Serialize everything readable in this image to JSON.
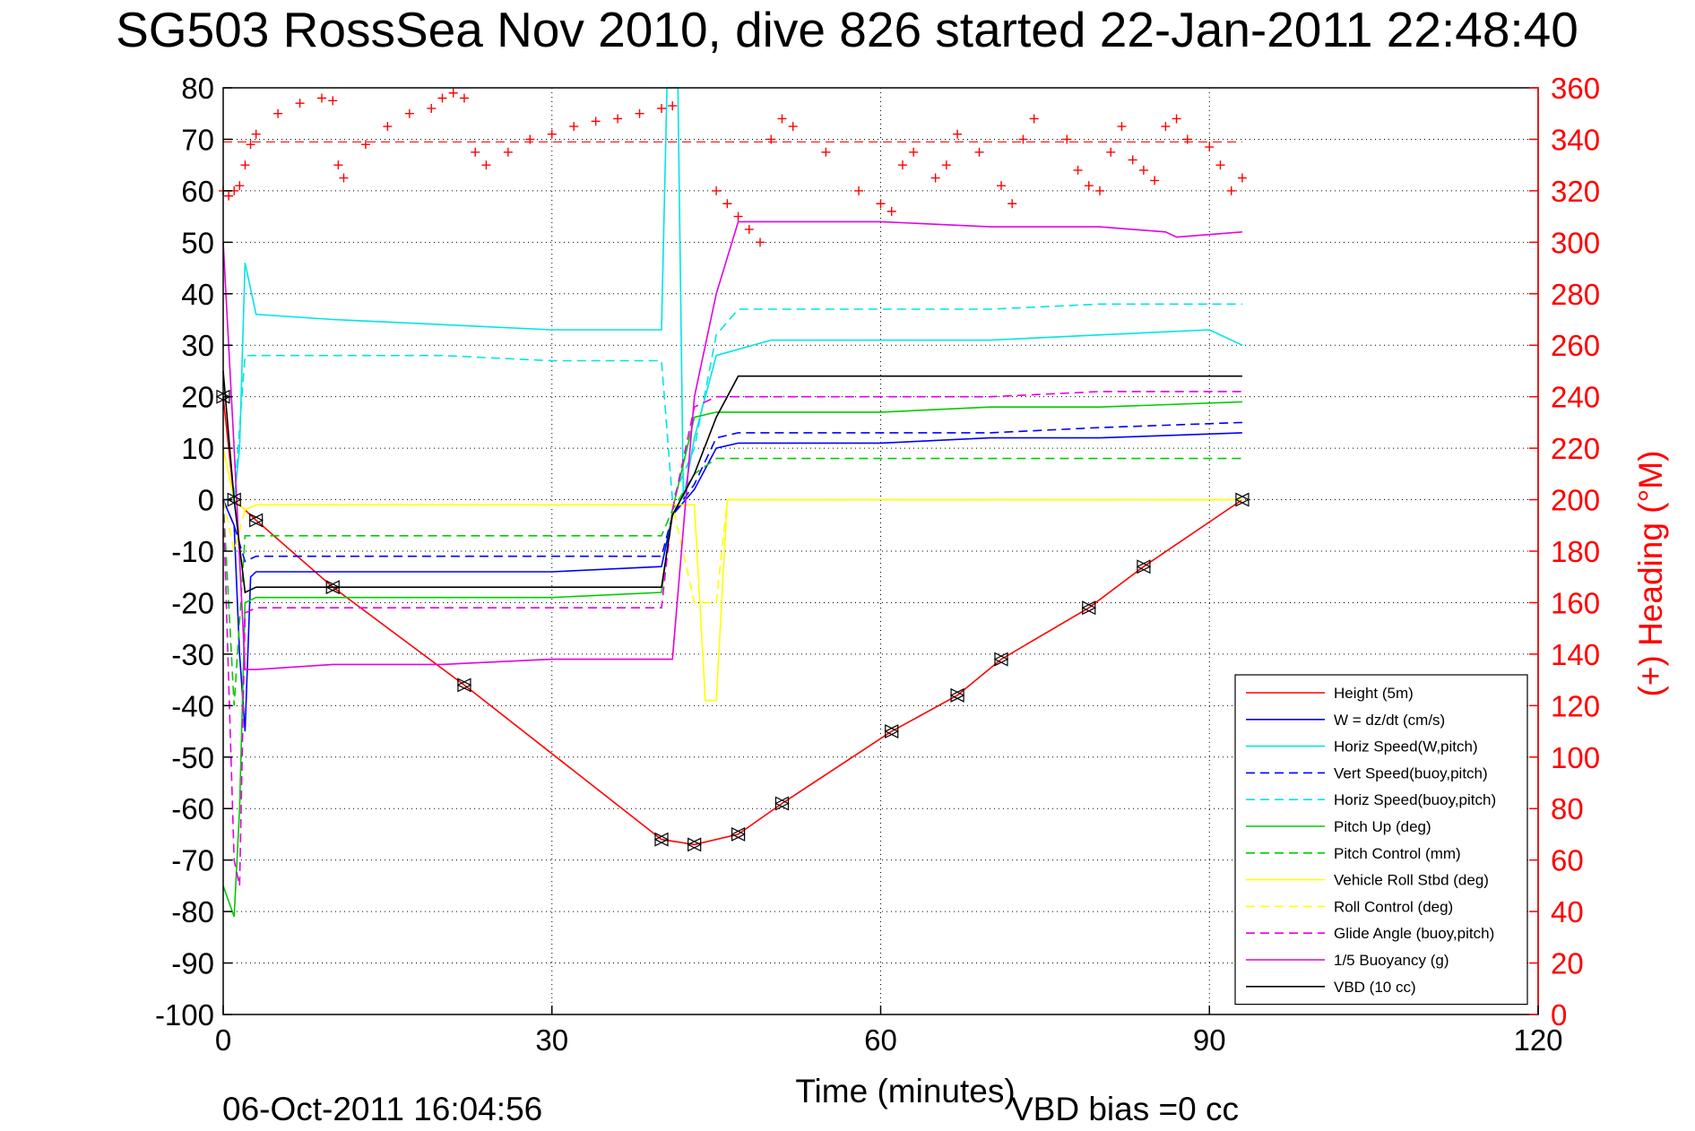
{
  "chart_data": {
    "type": "line",
    "title": "SG503 RossSea Nov 2010, dive 826 started 22-Jan-2011 22:48:40",
    "xlabel": "Time (minutes)",
    "ylabel": "",
    "y2label": "(+) Heading (°M)",
    "xlim": [
      0,
      120
    ],
    "ylim": [
      -100,
      80
    ],
    "y2lim": [
      0,
      360
    ],
    "xticks": [
      0,
      30,
      60,
      90,
      120
    ],
    "yticks": [
      80,
      70,
      60,
      50,
      40,
      30,
      20,
      10,
      0,
      -10,
      -20,
      -30,
      -40,
      -50,
      -60,
      -70,
      -80,
      -90,
      -100
    ],
    "y2ticks": [
      360,
      340,
      320,
      300,
      280,
      260,
      240,
      220,
      200,
      180,
      160,
      140,
      120,
      100,
      80,
      60,
      40,
      20,
      0
    ],
    "grid": true,
    "legend_position": "bottom-right",
    "footer_left": "06-Oct-2011 16:04:56",
    "footer_right": "VBD bias =0 cc",
    "reference_line": {
      "axis": "y2",
      "value": 339,
      "color": "#ff0000",
      "style": "dashed"
    },
    "series": [
      {
        "name": "Height (5m)",
        "color": "#ff0000",
        "dash": "solid",
        "axis": "y",
        "x": [
          0,
          1,
          3,
          10,
          22,
          40,
          43,
          47,
          51,
          61,
          67,
          71,
          79,
          84,
          93
        ],
        "y": [
          20,
          0,
          -4,
          -17,
          -36,
          -66,
          -67,
          -65,
          -59,
          -45,
          -38,
          -31,
          -21,
          -13,
          0
        ]
      },
      {
        "name": "W = dz/dt (cm/s)",
        "color": "#0000ff",
        "dash": "solid",
        "axis": "y",
        "x": [
          0,
          1,
          1.5,
          2,
          2.5,
          3,
          10,
          20,
          30,
          40,
          41,
          43,
          45,
          47,
          50,
          60,
          70,
          80,
          93
        ],
        "y": [
          0,
          -5,
          -30,
          -45,
          -15,
          -14,
          -14,
          -14,
          -14,
          -13,
          -3,
          2,
          10,
          11,
          11,
          11,
          12,
          12,
          13
        ]
      },
      {
        "name": "Horiz Speed(W,pitch)",
        "color": "#00e5e5",
        "dash": "solid",
        "axis": "y",
        "x": [
          0,
          1,
          1.5,
          2,
          3,
          10,
          20,
          30,
          40,
          40.5,
          41,
          41.5,
          42,
          43,
          45,
          50,
          60,
          70,
          80,
          90,
          93
        ],
        "y": [
          0,
          0,
          10,
          46,
          36,
          35,
          34,
          33,
          33,
          80,
          80,
          80,
          0,
          12,
          28,
          31,
          31,
          31,
          32,
          33,
          30
        ]
      },
      {
        "name": "Vert Speed(buoy,pitch)",
        "color": "#0000ff",
        "dash": "dashed",
        "axis": "y",
        "x": [
          0,
          1,
          2,
          3,
          10,
          20,
          30,
          40,
          41,
          43,
          45,
          47,
          60,
          70,
          80,
          93
        ],
        "y": [
          0,
          -5,
          -12,
          -11,
          -11,
          -11,
          -11,
          -11,
          -3,
          3,
          12,
          13,
          13,
          13,
          14,
          15
        ]
      },
      {
        "name": "Horiz Speed(buoy,pitch)",
        "color": "#00e5e5",
        "dash": "dashed",
        "axis": "y",
        "x": [
          0,
          1,
          2,
          3,
          10,
          20,
          30,
          40,
          41,
          43,
          45,
          47,
          60,
          70,
          80,
          93
        ],
        "y": [
          0,
          0,
          28,
          28,
          28,
          28,
          27,
          27,
          0,
          10,
          32,
          37,
          37,
          37,
          38,
          38
        ]
      },
      {
        "name": "Pitch Up (deg)",
        "color": "#00cc00",
        "dash": "solid",
        "axis": "y",
        "x": [
          0,
          1,
          1.5,
          2,
          3,
          10,
          20,
          30,
          40,
          41,
          43,
          45,
          50,
          60,
          70,
          80,
          93
        ],
        "y": [
          -75,
          -81,
          -60,
          -20,
          -19,
          -19,
          -19,
          -19,
          -18,
          -2,
          16,
          17,
          17,
          17,
          18,
          18,
          19
        ]
      },
      {
        "name": "Pitch Control (mm)",
        "color": "#00cc00",
        "dash": "dashed",
        "axis": "y",
        "x": [
          0,
          1,
          2,
          3,
          10,
          20,
          30,
          40,
          41,
          43,
          45,
          47,
          60,
          70,
          80,
          93
        ],
        "y": [
          0,
          -40,
          -7,
          -7,
          -7,
          -7,
          -7,
          -7,
          -2,
          5,
          8,
          8,
          8,
          8,
          8,
          8
        ]
      },
      {
        "name": "Vehicle Roll Stbd (deg)",
        "color": "#ffff00",
        "dash": "solid",
        "axis": "y",
        "x": [
          0,
          1,
          2,
          3,
          10,
          22,
          30,
          40,
          41,
          43,
          44,
          45,
          46,
          50,
          60,
          70,
          80,
          93
        ],
        "y": [
          10,
          0,
          -2,
          -1,
          -1,
          -1,
          -1,
          -1,
          -1,
          -1,
          -39,
          -39,
          0,
          0,
          0,
          0,
          0,
          0
        ]
      },
      {
        "name": "Roll Control (deg)",
        "color": "#ffff00",
        "dash": "dashed",
        "axis": "y",
        "x": [
          0,
          1,
          2,
          3,
          10,
          22,
          30,
          40,
          41,
          43,
          44,
          45,
          46,
          50,
          60,
          70,
          80,
          93
        ],
        "y": [
          0,
          -10,
          -2,
          -1,
          -1,
          -1,
          -1,
          -1,
          -1,
          -20,
          -20,
          -20,
          0,
          0,
          0,
          0,
          0,
          0
        ]
      },
      {
        "name": "Glide Angle (buoy,pitch)",
        "color": "#e500e5",
        "dash": "dashed",
        "axis": "y",
        "x": [
          0,
          1,
          1.5,
          2,
          3,
          10,
          20,
          30,
          40,
          41,
          43,
          45,
          50,
          60,
          70,
          80,
          93
        ],
        "y": [
          0,
          -70,
          -75,
          -22,
          -21,
          -21,
          -21,
          -21,
          -21,
          -2,
          18,
          20,
          20,
          20,
          20,
          21,
          21
        ]
      },
      {
        "name": "1/5 Buoyancy (g)",
        "color": "#e500e5",
        "dash": "solid",
        "axis": "y",
        "x": [
          0,
          1,
          2,
          3,
          10,
          20,
          30,
          40,
          41,
          43,
          45,
          47,
          60,
          70,
          80,
          86,
          87,
          93
        ],
        "y": [
          50,
          10,
          -33,
          -33,
          -32,
          -32,
          -31,
          -31,
          -31,
          20,
          40,
          54,
          54,
          53,
          53,
          52,
          51,
          52
        ]
      },
      {
        "name": "VBD (10 cc)",
        "color": "#000000",
        "dash": "solid",
        "axis": "y",
        "x": [
          0,
          1,
          2,
          3,
          10,
          20,
          30,
          40,
          41,
          43,
          45,
          47,
          60,
          70,
          80,
          93
        ],
        "y": [
          25,
          0,
          -18,
          -17,
          -17,
          -17,
          -17,
          -17,
          -3,
          5,
          16,
          24,
          24,
          24,
          24,
          24
        ]
      }
    ],
    "heading": {
      "name": "(+) Heading (°M)",
      "color": "#ff0000",
      "axis": "y2",
      "marker": "plus",
      "x": [
        0,
        0.5,
        1,
        1.5,
        2,
        2.5,
        3,
        5,
        7,
        9,
        10,
        10.5,
        11,
        13,
        15,
        17,
        19,
        20,
        21,
        22,
        23,
        24,
        26,
        28,
        30,
        32,
        34,
        36,
        38,
        40,
        41,
        45,
        46,
        47,
        48,
        49,
        50,
        51,
        52,
        55,
        58,
        60,
        61,
        62,
        63,
        65,
        66,
        67,
        69,
        71,
        72,
        73,
        74,
        77,
        78,
        79,
        80,
        81,
        82,
        83,
        84,
        85,
        86,
        87,
        88,
        90,
        91,
        92,
        93
      ],
      "y": [
        320,
        318,
        320,
        322,
        330,
        338,
        342,
        350,
        354,
        356,
        355,
        330,
        325,
        338,
        345,
        350,
        352,
        356,
        358,
        356,
        335,
        330,
        335,
        340,
        342,
        345,
        347,
        348,
        350,
        352,
        353,
        320,
        315,
        310,
        305,
        300,
        340,
        348,
        345,
        335,
        320,
        315,
        312,
        330,
        335,
        325,
        330,
        342,
        335,
        322,
        315,
        340,
        348,
        340,
        328,
        322,
        320,
        335,
        345,
        332,
        328,
        324,
        345,
        348,
        340,
        337,
        330,
        320,
        325
      ]
    }
  }
}
